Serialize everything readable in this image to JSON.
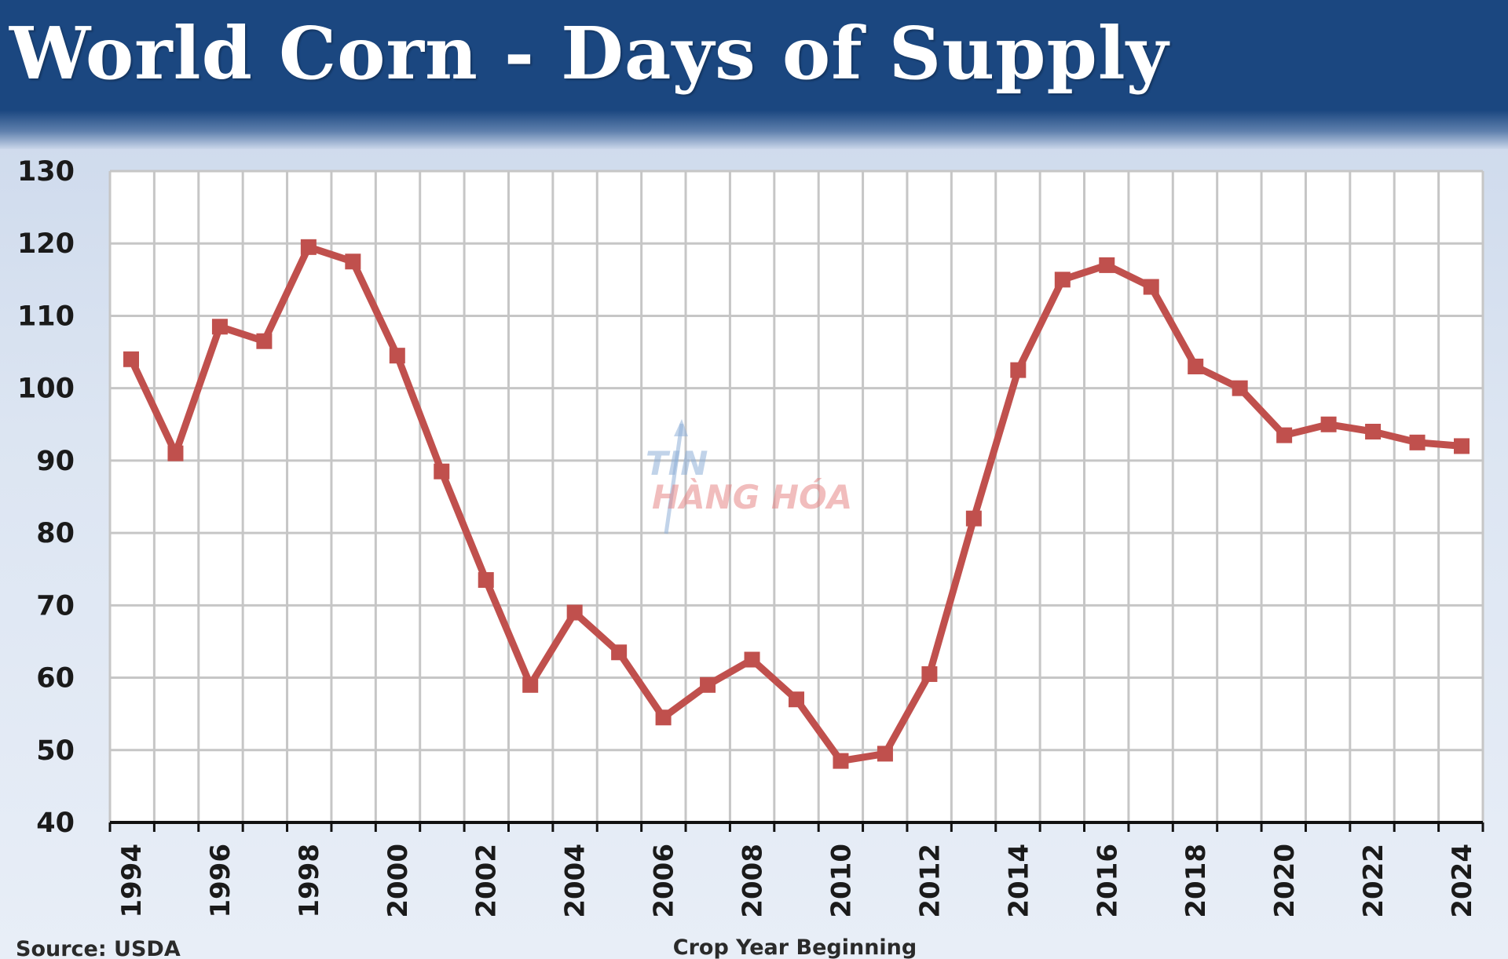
{
  "chart_data": {
    "type": "line",
    "title": "World Corn - Days of Supply",
    "xlabel": "Crop Year Beginning",
    "ylabel": "",
    "source": "Source: USDA",
    "watermark": [
      "TIN",
      "HÀNG HÓA"
    ],
    "ylim": [
      40,
      130
    ],
    "yticks": [
      40,
      50,
      60,
      70,
      80,
      90,
      100,
      110,
      120,
      130
    ],
    "xlim": [
      1994,
      2024
    ],
    "xticks": [
      "1994",
      "1996",
      "1998",
      "2000",
      "2002",
      "2004",
      "2006",
      "2008",
      "2010",
      "2012",
      "2014",
      "2016",
      "2018",
      "2020",
      "2022",
      "2024"
    ],
    "grid": true,
    "line_color": "#c0504d",
    "x": [
      1994,
      1995,
      1996,
      1997,
      1998,
      1999,
      2000,
      2001,
      2002,
      2003,
      2004,
      2005,
      2006,
      2007,
      2008,
      2009,
      2010,
      2011,
      2012,
      2013,
      2014,
      2015,
      2016,
      2017,
      2018,
      2019,
      2020,
      2021,
      2022,
      2023,
      2024
    ],
    "values": [
      104,
      91,
      108.5,
      106.5,
      119.5,
      117.5,
      104.5,
      88.5,
      73.5,
      59,
      69,
      63.5,
      54.5,
      59,
      62.5,
      57,
      48.5,
      49.5,
      60.5,
      82,
      102.5,
      115,
      117,
      114,
      103,
      100,
      93.5,
      95,
      94,
      92.5,
      92
    ]
  }
}
